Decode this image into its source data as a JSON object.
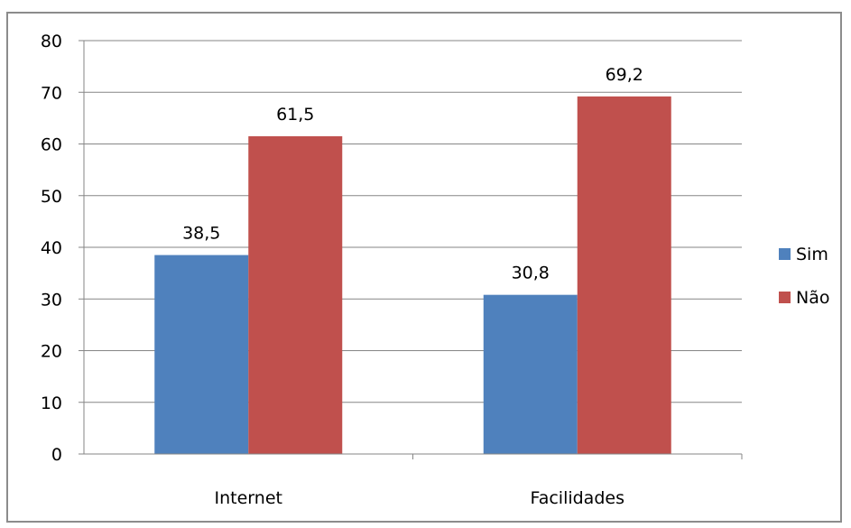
{
  "chart_data": {
    "type": "bar",
    "categories": [
      "Internet",
      "Facilidades"
    ],
    "series": [
      {
        "name": "Sim",
        "values": [
          38.5,
          30.8
        ],
        "labels": [
          "38,5",
          "30,8"
        ],
        "color": "#4f81bd"
      },
      {
        "name": "Não",
        "values": [
          61.5,
          69.2
        ],
        "labels": [
          "61,5",
          "69,2"
        ],
        "color": "#c0504d"
      }
    ],
    "ylim": [
      0,
      80
    ],
    "yticks": [
      0,
      10,
      20,
      30,
      40,
      50,
      60,
      70,
      80
    ],
    "grid": true,
    "legend_position": "right"
  },
  "colors": {
    "gridline": "#868686",
    "frame": "#8c8c8c"
  }
}
